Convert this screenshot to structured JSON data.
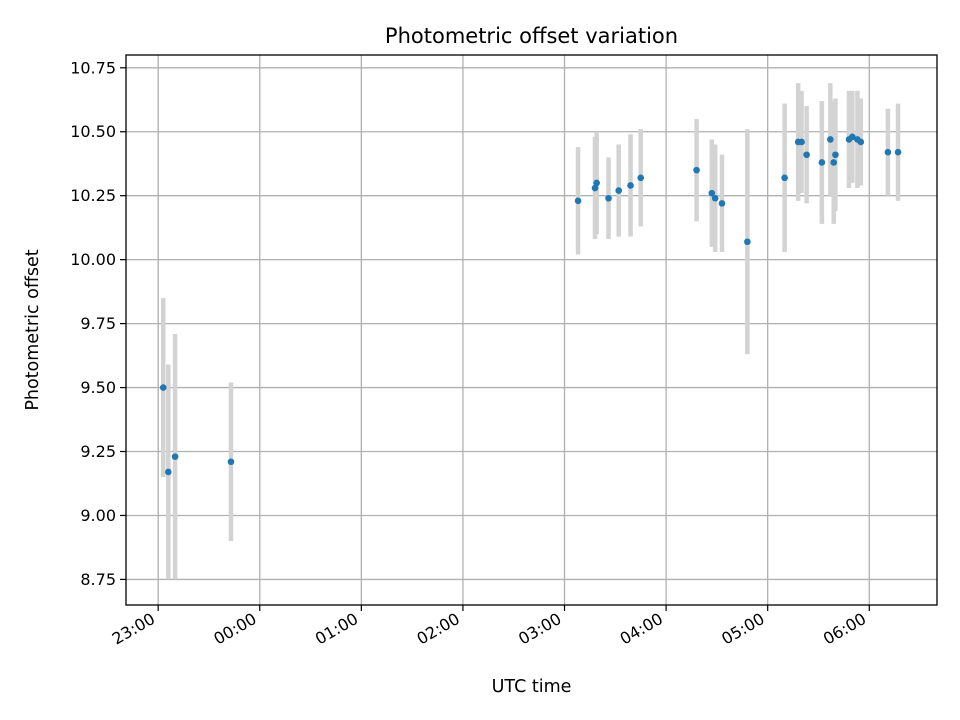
{
  "chart_data": {
    "type": "scatter",
    "title": "Photometric offset variation",
    "xlabel": "UTC time",
    "ylabel": "Photometric offset",
    "x_unit": "UTC time (HH:MM), starting 23:00 and crossing midnight",
    "xlim": [
      "22:41",
      "06:40"
    ],
    "ylim": [
      8.65,
      10.8
    ],
    "xticks": [
      "23:00",
      "00:00",
      "01:00",
      "02:00",
      "03:00",
      "04:00",
      "05:00",
      "06:00"
    ],
    "yticks": [
      "8.75",
      "9.00",
      "9.25",
      "9.50",
      "9.75",
      "10.00",
      "10.25",
      "10.50",
      "10.75"
    ],
    "grid": true,
    "legend": "none",
    "colors": {
      "point": "#1f77b4",
      "errorbar": "#d3d3d3",
      "grid": "#b0b0b0"
    },
    "series": [
      {
        "points": [
          {
            "x": "23:03",
            "y": 9.5,
            "err": 0.35
          },
          {
            "x": "23:06",
            "y": 9.17,
            "err": 0.42
          },
          {
            "x": "23:10",
            "y": 9.23,
            "err": 0.48
          },
          {
            "x": "23:43",
            "y": 9.21,
            "err": 0.31
          },
          {
            "x": "03:08",
            "y": 10.23,
            "err": 0.21
          },
          {
            "x": "03:18",
            "y": 10.28,
            "err": 0.2
          },
          {
            "x": "03:19",
            "y": 10.3,
            "err": 0.2
          },
          {
            "x": "03:26",
            "y": 10.24,
            "err": 0.16
          },
          {
            "x": "03:32",
            "y": 10.27,
            "err": 0.18
          },
          {
            "x": "03:39",
            "y": 10.29,
            "err": 0.2
          },
          {
            "x": "03:45",
            "y": 10.32,
            "err": 0.19
          },
          {
            "x": "04:18",
            "y": 10.35,
            "err": 0.2
          },
          {
            "x": "04:27",
            "y": 10.26,
            "err": 0.21
          },
          {
            "x": "04:29",
            "y": 10.24,
            "err": 0.21
          },
          {
            "x": "04:33",
            "y": 10.22,
            "err": 0.19
          },
          {
            "x": "04:48",
            "y": 10.07,
            "err": 0.44
          },
          {
            "x": "05:10",
            "y": 10.32,
            "err": 0.29
          },
          {
            "x": "05:18",
            "y": 10.46,
            "err": 0.23
          },
          {
            "x": "05:20",
            "y": 10.46,
            "err": 0.2
          },
          {
            "x": "05:23",
            "y": 10.41,
            "err": 0.19
          },
          {
            "x": "05:32",
            "y": 10.38,
            "err": 0.24
          },
          {
            "x": "05:37",
            "y": 10.47,
            "err": 0.22
          },
          {
            "x": "05:39",
            "y": 10.38,
            "err": 0.24
          },
          {
            "x": "05:40",
            "y": 10.41,
            "err": 0.22
          },
          {
            "x": "05:48",
            "y": 10.47,
            "err": 0.19
          },
          {
            "x": "05:50",
            "y": 10.48,
            "err": 0.18
          },
          {
            "x": "05:53",
            "y": 10.47,
            "err": 0.19
          },
          {
            "x": "05:55",
            "y": 10.46,
            "err": 0.17
          },
          {
            "x": "06:11",
            "y": 10.42,
            "err": 0.17
          },
          {
            "x": "06:17",
            "y": 10.42,
            "err": 0.19
          }
        ]
      }
    ]
  }
}
